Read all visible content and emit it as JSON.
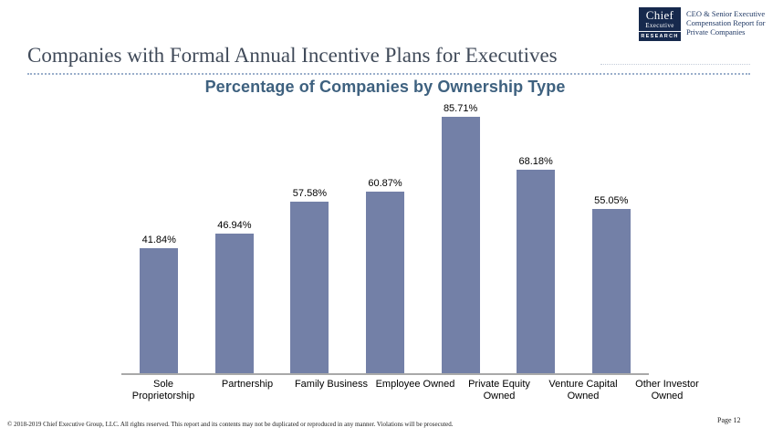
{
  "header": {
    "logo": {
      "brand_top": "Chief",
      "brand_bottom": "Executive",
      "research_label": "RESEARCH"
    },
    "tagline_lines": [
      "CEO & Senior Executive",
      "Compensation Report for",
      "Private Companies"
    ]
  },
  "title": "Companies with Formal Annual Incentive Plans for Executives",
  "chart_data": {
    "type": "bar",
    "title": "Percentage of Companies by Ownership Type",
    "categories": [
      "Sole Proprietorship",
      "Partnership",
      "Family Business",
      "Employee Owned",
      "Private Equity Owned",
      "Venture Capital Owned",
      "Other Investor Owned"
    ],
    "values": [
      41.84,
      46.94,
      57.58,
      60.87,
      85.71,
      68.18,
      55.05
    ],
    "value_labels": [
      "41.84%",
      "46.94%",
      "57.58%",
      "60.87%",
      "85.71%",
      "68.18%",
      "55.05%"
    ],
    "xlabel": "",
    "ylabel": "",
    "ylim": [
      0,
      90
    ],
    "grid": false,
    "legend": false,
    "bar_color": "#7380A7",
    "axis_color": "#A9A9A9",
    "title_color": "#3E617F"
  },
  "footer": {
    "copyright": "© 2018-2019 Chief Executive Group, LLC. All rights reserved. This report and its contents may not be duplicated or reproduced in any manner. Violations will be prosecuted.",
    "page_label": "Page 12"
  },
  "colors": {
    "accent_navy": "#16294D",
    "tagline_navy": "#1F3864",
    "title_gray_navy": "#404A59",
    "dotted_rule_blue": "#9AAECB"
  }
}
